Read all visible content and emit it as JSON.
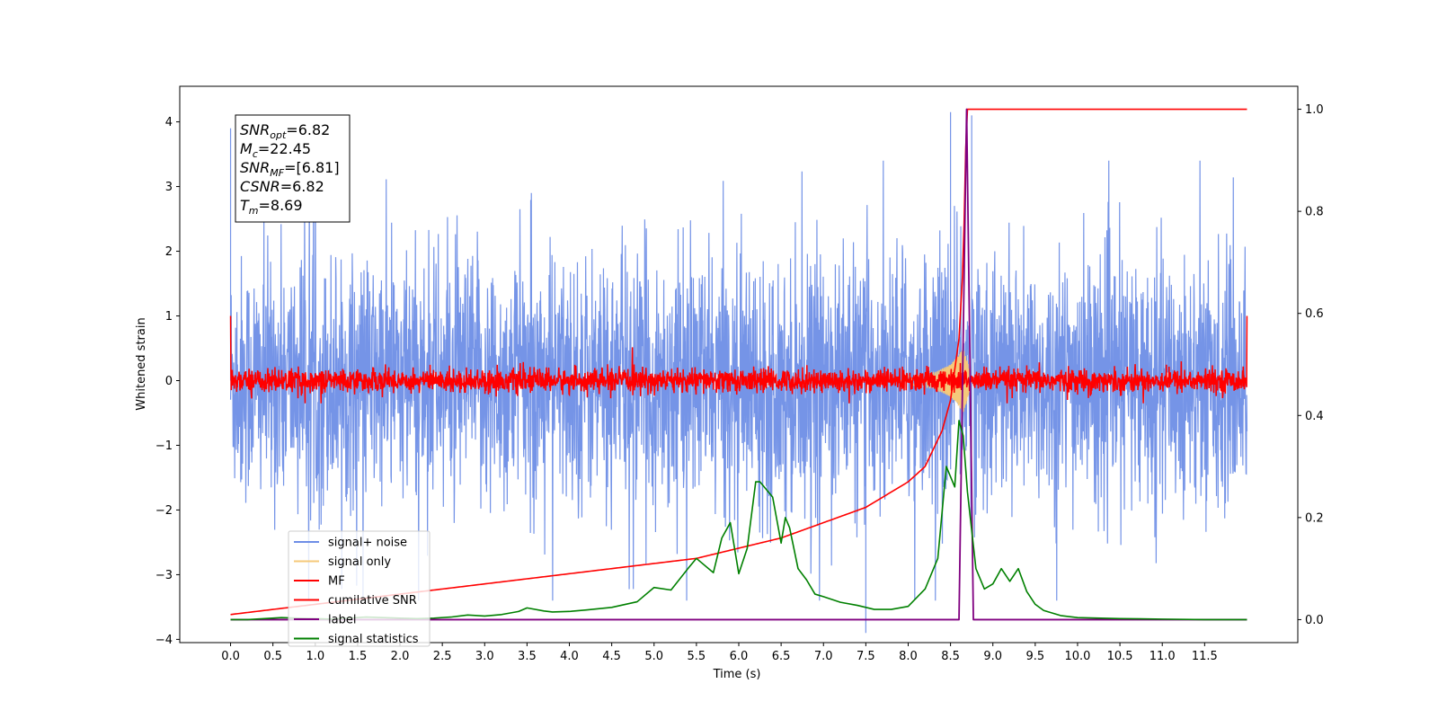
{
  "chart_data": {
    "type": "line",
    "xlabel": "Time (s)",
    "ylabel": "Whitened strain",
    "xlim": [
      -0.6,
      12.6
    ],
    "ylim": [
      -4.05,
      4.55
    ],
    "y2lim": [
      -0.045,
      1.045
    ],
    "xticks": [
      0.0,
      0.5,
      1.0,
      1.5,
      2.0,
      2.5,
      3.0,
      3.5,
      4.0,
      4.5,
      5.0,
      5.5,
      6.0,
      6.5,
      7.0,
      7.5,
      8.0,
      8.5,
      9.0,
      9.5,
      10.0,
      10.5,
      11.0,
      11.5
    ],
    "xtick_labels": [
      "0.0",
      "0.5",
      "1.0",
      "1.5",
      "2.0",
      "2.5",
      "3.0",
      "3.5",
      "4.0",
      "4.5",
      "5.0",
      "5.5",
      "6.0",
      "6.5",
      "7.0",
      "7.5",
      "8.0",
      "8.5",
      "9.0",
      "9.5",
      "10.0",
      "10.5",
      "11.0",
      "11.5"
    ],
    "yticks": [
      -4,
      -3,
      -2,
      -1,
      0,
      1,
      2,
      3,
      4
    ],
    "ytick_labels": [
      "−4",
      "−3",
      "−2",
      "−1",
      "0",
      "1",
      "2",
      "3",
      "4"
    ],
    "y2ticks": [
      0.0,
      0.2,
      0.4,
      0.6,
      0.8,
      1.0
    ],
    "y2tick_labels": [
      "0.0",
      "0.2",
      "0.4",
      "0.6",
      "0.8",
      "1.0"
    ],
    "legend_position": "lower-left",
    "series": [
      {
        "name": "signal+ noise",
        "axis": "left",
        "color": "#6e8ee6",
        "kind": "noise",
        "x_range": [
          0.0,
          12.0
        ],
        "band_lower": [
          -1.8,
          -1.8
        ],
        "band_upper": [
          1.8,
          1.8
        ],
        "note_peaks": [
          [
            0.0,
            3.9
          ],
          [
            8.5,
            4.15
          ],
          [
            8.75,
            4.1
          ],
          [
            7.5,
            -3.9
          ]
        ]
      },
      {
        "name": "signal only",
        "axis": "left",
        "color": "#f5c97a",
        "x": [
          7.9,
          8.1,
          8.3,
          8.5,
          8.6,
          8.65,
          8.7,
          8.75
        ],
        "envelope": [
          0.05,
          0.08,
          0.12,
          0.25,
          0.4,
          0.5,
          0.3,
          0.0
        ]
      },
      {
        "name": "MF",
        "axis": "left",
        "color": "#ff0000",
        "kind": "mf",
        "x_range": [
          0.0,
          12.0
        ],
        "amplitude": 0.2,
        "edges": [
          [
            0.0,
            1.0
          ],
          [
            12.0,
            1.0
          ]
        ]
      },
      {
        "name": "cumilative SNR",
        "axis": "right",
        "color": "#ff0000",
        "x": [
          0.0,
          0.5,
          1.0,
          1.5,
          2.0,
          2.5,
          3.0,
          3.5,
          4.0,
          4.5,
          5.0,
          5.5,
          6.0,
          6.5,
          7.0,
          7.5,
          8.0,
          8.2,
          8.4,
          8.5,
          8.6,
          8.65,
          8.69,
          8.7,
          9.0,
          10.0,
          11.0,
          12.0
        ],
        "values": [
          0.01,
          0.02,
          0.03,
          0.04,
          0.05,
          0.06,
          0.07,
          0.08,
          0.09,
          0.1,
          0.11,
          0.12,
          0.14,
          0.16,
          0.19,
          0.22,
          0.27,
          0.3,
          0.37,
          0.43,
          0.55,
          0.7,
          1.0,
          1.0,
          1.0,
          1.0,
          1.0,
          1.0
        ]
      },
      {
        "name": "label",
        "axis": "right",
        "color": "#800080",
        "x": [
          0.0,
          8.6,
          8.69,
          8.77,
          12.0
        ],
        "values": [
          0.0,
          0.0,
          1.0,
          0.0,
          0.0
        ]
      },
      {
        "name": "signal statistics",
        "axis": "right",
        "color": "#008000",
        "x": [
          0.0,
          0.2,
          0.4,
          0.6,
          0.8,
          1.0,
          1.2,
          1.4,
          1.6,
          1.8,
          2.0,
          2.2,
          2.4,
          2.6,
          2.8,
          3.0,
          3.2,
          3.4,
          3.5,
          3.7,
          3.8,
          4.0,
          4.2,
          4.5,
          4.8,
          5.0,
          5.2,
          5.4,
          5.5,
          5.7,
          5.8,
          5.9,
          6.0,
          6.1,
          6.2,
          6.25,
          6.3,
          6.4,
          6.5,
          6.55,
          6.6,
          6.7,
          6.8,
          6.9,
          7.0,
          7.2,
          7.4,
          7.6,
          7.8,
          8.0,
          8.2,
          8.35,
          8.45,
          8.55,
          8.6,
          8.65,
          8.7,
          8.8,
          8.9,
          9.0,
          9.1,
          9.2,
          9.3,
          9.4,
          9.5,
          9.6,
          9.8,
          10.0,
          10.5,
          11.0,
          11.5,
          12.0
        ],
        "values": [
          0.0,
          0.0,
          0.002,
          0.004,
          0.003,
          0.002,
          0.001,
          0.003,
          0.005,
          0.004,
          0.003,
          0.002,
          0.003,
          0.005,
          0.009,
          0.007,
          0.01,
          0.016,
          0.023,
          0.017,
          0.015,
          0.016,
          0.019,
          0.024,
          0.035,
          0.063,
          0.058,
          0.1,
          0.12,
          0.092,
          0.16,
          0.19,
          0.09,
          0.14,
          0.27,
          0.27,
          0.26,
          0.24,
          0.15,
          0.2,
          0.18,
          0.1,
          0.078,
          0.05,
          0.045,
          0.034,
          0.028,
          0.02,
          0.02,
          0.026,
          0.06,
          0.12,
          0.3,
          0.26,
          0.39,
          0.36,
          0.25,
          0.1,
          0.06,
          0.07,
          0.1,
          0.075,
          0.1,
          0.055,
          0.03,
          0.018,
          0.008,
          0.004,
          0.002,
          0.001,
          0.0,
          0.0
        ]
      }
    ],
    "annotation": {
      "lines": [
        {
          "label": "SNR",
          "sub": "opt",
          "value": "=6.82"
        },
        {
          "label": "M",
          "sub": "c",
          "value": "=22.45"
        },
        {
          "label": "SNR",
          "sub": "MF",
          "value": "=[6.81]"
        },
        {
          "label": "CSNR",
          "sub": "",
          "value": "=6.82"
        },
        {
          "label": "T",
          "sub": "m",
          "value": "=8.69"
        }
      ]
    }
  }
}
